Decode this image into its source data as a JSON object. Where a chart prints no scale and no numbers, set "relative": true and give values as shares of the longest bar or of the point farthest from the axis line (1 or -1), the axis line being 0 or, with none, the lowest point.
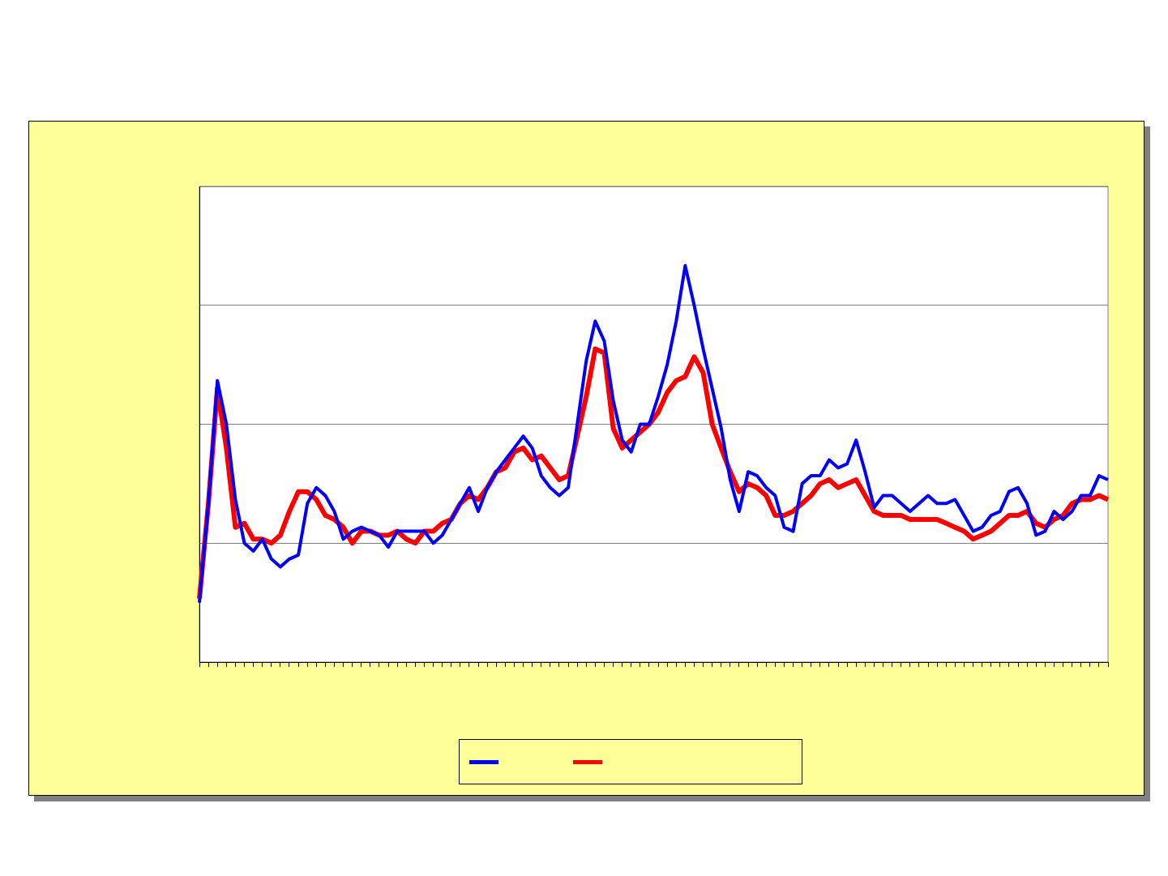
{
  "chart_data": {
    "type": "line",
    "relative": true,
    "grid": "y",
    "categories": [
      null,
      null,
      null,
      null,
      null,
      null,
      null,
      null,
      null,
      null,
      null,
      null,
      null,
      null,
      null,
      null,
      null,
      null,
      null,
      null,
      null,
      null,
      null,
      null,
      null,
      null,
      null,
      null,
      null,
      null,
      null,
      null,
      null,
      null,
      null,
      null,
      null,
      null,
      null,
      null,
      null,
      null,
      null,
      null,
      null,
      null,
      null,
      null,
      null,
      null,
      null,
      null,
      null,
      null,
      null,
      null,
      null,
      null,
      null,
      null,
      null,
      null,
      null,
      null,
      null,
      null,
      null,
      null,
      null,
      null,
      null,
      null,
      null,
      null,
      null,
      null,
      null,
      null,
      null,
      null,
      null,
      null,
      null,
      null,
      null,
      null,
      null,
      null,
      null,
      null,
      null,
      null,
      null,
      null,
      null,
      null,
      null,
      null,
      null,
      null,
      null,
      null
    ],
    "series": [
      {
        "color": "#0000ff",
        "values": [
          0.15,
          0.4,
          0.71,
          0.6,
          0.41,
          0.3,
          0.28,
          0.31,
          0.26,
          0.24,
          0.26,
          0.27,
          0.4,
          0.44,
          0.42,
          0.38,
          0.31,
          0.33,
          0.34,
          0.33,
          0.32,
          0.29,
          0.33,
          0.33,
          0.33,
          0.33,
          0.3,
          0.32,
          0.36,
          0.4,
          0.44,
          0.38,
          0.44,
          0.48,
          0.51,
          0.54,
          0.57,
          0.54,
          0.47,
          0.44,
          0.42,
          0.44,
          0.6,
          0.76,
          0.86,
          0.81,
          0.66,
          0.56,
          0.53,
          0.6,
          0.6,
          0.67,
          0.75,
          0.86,
          1.0,
          0.9,
          0.79,
          0.69,
          0.59,
          0.46,
          0.38,
          0.48,
          0.47,
          0.44,
          0.42,
          0.34,
          0.33,
          0.45,
          0.47,
          0.47,
          0.51,
          0.49,
          0.5,
          0.56,
          0.48,
          0.39,
          0.42,
          0.42,
          0.4,
          0.38,
          0.4,
          0.42,
          0.4,
          0.4,
          0.41,
          0.37,
          0.33,
          0.34,
          0.37,
          0.38,
          0.43,
          0.44,
          0.4,
          0.32,
          0.33,
          0.38,
          0.36,
          0.38,
          0.42,
          0.42,
          0.47,
          0.46
        ]
      },
      {
        "color": "#ff0000",
        "values": [
          0.16,
          0.4,
          0.69,
          0.54,
          0.34,
          0.35,
          0.31,
          0.31,
          0.3,
          0.32,
          0.38,
          0.43,
          0.43,
          0.41,
          0.37,
          0.36,
          0.34,
          0.3,
          0.33,
          0.33,
          0.32,
          0.32,
          0.33,
          0.31,
          0.3,
          0.33,
          0.33,
          0.35,
          0.36,
          0.4,
          0.42,
          0.41,
          0.44,
          0.48,
          0.49,
          0.53,
          0.54,
          0.51,
          0.52,
          0.49,
          0.46,
          0.47,
          0.57,
          0.67,
          0.79,
          0.78,
          0.59,
          0.54,
          0.56,
          0.58,
          0.6,
          0.63,
          0.68,
          0.71,
          0.72,
          0.77,
          0.73,
          0.6,
          0.54,
          0.48,
          0.43,
          0.45,
          0.44,
          0.42,
          0.37,
          0.37,
          0.38,
          0.4,
          0.42,
          0.45,
          0.46,
          0.44,
          0.45,
          0.46,
          0.42,
          0.38,
          0.37,
          0.37,
          0.37,
          0.36,
          0.36,
          0.36,
          0.36,
          0.35,
          0.34,
          0.33,
          0.31,
          0.32,
          0.33,
          0.35,
          0.37,
          0.37,
          0.38,
          0.35,
          0.34,
          0.36,
          0.37,
          0.4,
          0.41,
          0.41,
          0.42,
          0.41
        ]
      }
    ]
  }
}
